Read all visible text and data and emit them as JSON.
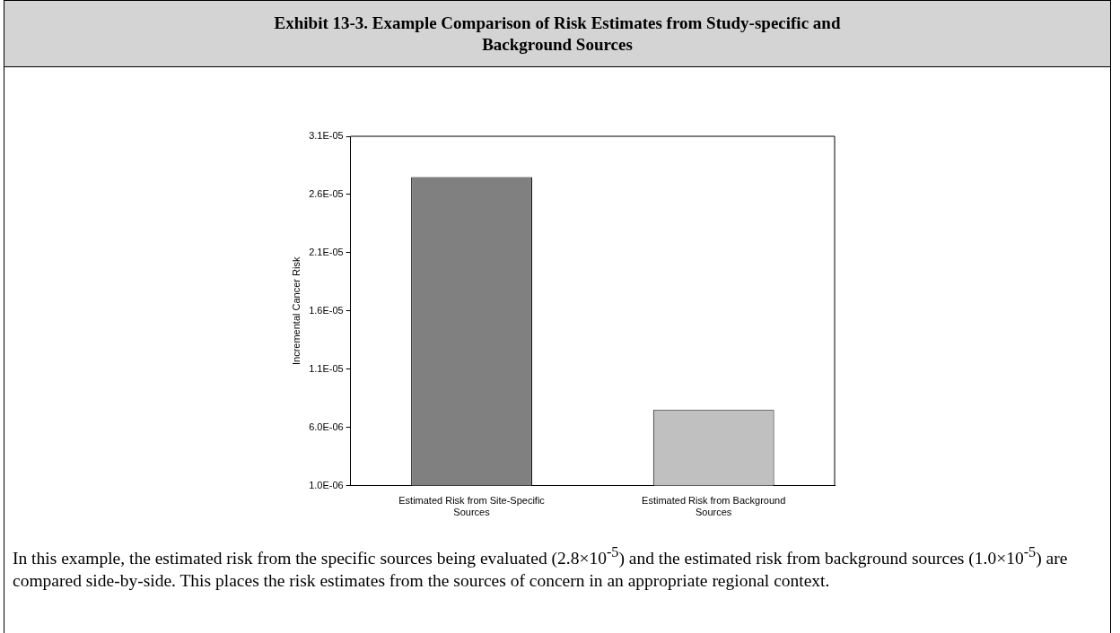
{
  "chart_data": {
    "type": "bar",
    "title": "Exhibit 13-3.  Example Comparison of Risk Estimates from Study-specific and Background Sources",
    "ylabel": "Incremental Cancer Risk",
    "categories": [
      "Estimated Risk from Site-Specific Sources",
      "Estimated Risk from Background Sources"
    ],
    "values": [
      2.75e-05,
      7.5e-06
    ],
    "colors": [
      "#808080",
      "#c0c0c0"
    ],
    "ylim": [
      1e-06,
      3.1e-05
    ],
    "yticks": [
      {
        "value": 1e-06,
        "label": "1.0E-06"
      },
      {
        "value": 6e-06,
        "label": "6.0E-06"
      },
      {
        "value": 1.1e-05,
        "label": "1.1E-05"
      },
      {
        "value": 1.6e-05,
        "label": "1.6E-05"
      },
      {
        "value": 2.1e-05,
        "label": "2.1E-05"
      },
      {
        "value": 2.6e-05,
        "label": "2.6E-05"
      },
      {
        "value": 3.1e-05,
        "label": "3.1E-05"
      }
    ],
    "grid": false,
    "legend": false,
    "annotations": [
      "In this example, the estimated risk from the specific sources being evaluated (2.8×10$^{-5}$) and the estimated risk from background sources (1.0×10$^{-5}$) are compared side-by-side.  This places the risk estimates from the sources of concern in an appropriate regional context."
    ]
  }
}
